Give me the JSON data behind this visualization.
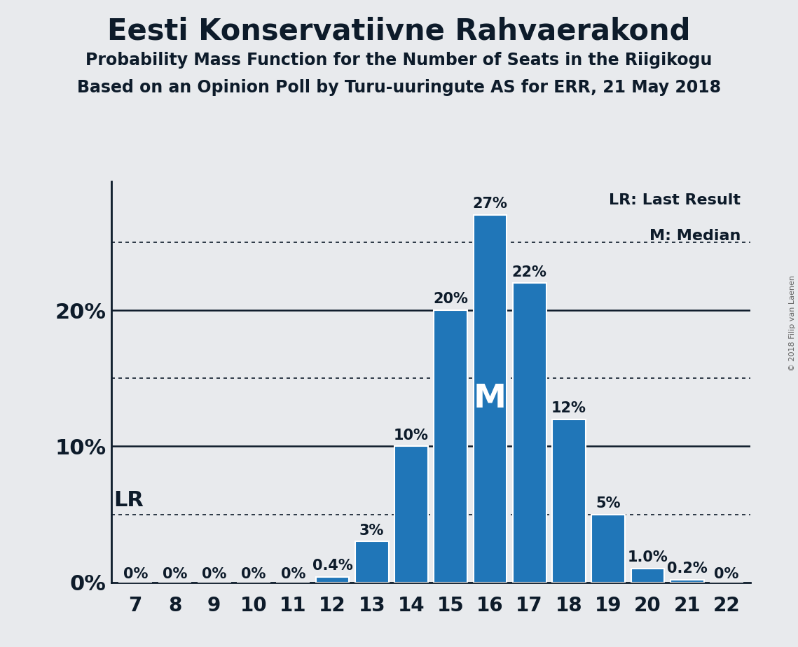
{
  "title": "Eesti Konservatiivne Rahvaerakond",
  "subtitle1": "Probability Mass Function for the Number of Seats in the Riigikogu",
  "subtitle2": "Based on an Opinion Poll by Turu-uuringute AS for ERR, 21 May 2018",
  "copyright": "© 2018 Filip van Laenen",
  "seats": [
    7,
    8,
    9,
    10,
    11,
    12,
    13,
    14,
    15,
    16,
    17,
    18,
    19,
    20,
    21,
    22
  ],
  "probabilities": [
    0.0,
    0.0,
    0.0,
    0.0,
    0.0,
    0.004,
    0.03,
    0.1,
    0.2,
    0.27,
    0.22,
    0.12,
    0.05,
    0.01,
    0.002,
    0.0
  ],
  "bar_labels": [
    "0%",
    "0%",
    "0%",
    "0%",
    "0%",
    "0.4%",
    "3%",
    "10%",
    "20%",
    "27%",
    "22%",
    "12%",
    "5%",
    "1.0%",
    "0.2%",
    "0%"
  ],
  "bar_color": "#2076b8",
  "background_color": "#e8eaed",
  "bar_edge_color": "#ffffff",
  "yticks": [
    0.0,
    0.1,
    0.2
  ],
  "ytick_labels": [
    "0%",
    "10%",
    "20%"
  ],
  "solid_lines": [
    0.1,
    0.2
  ],
  "dotted_lines": [
    0.05,
    0.15,
    0.25
  ],
  "lr_value": 0.05,
  "median_seat": 16,
  "legend_lr": "LR: Last Result",
  "legend_m": "M: Median",
  "title_fontsize": 30,
  "subtitle_fontsize": 17,
  "axis_tick_fontsize": 20,
  "bar_label_fontsize": 15,
  "ylabel_fontsize": 22,
  "lr_fontsize": 22,
  "median_fontsize": 34,
  "legend_fontsize": 16,
  "text_color": "#0d1b2a",
  "copyright_color": "#666666"
}
